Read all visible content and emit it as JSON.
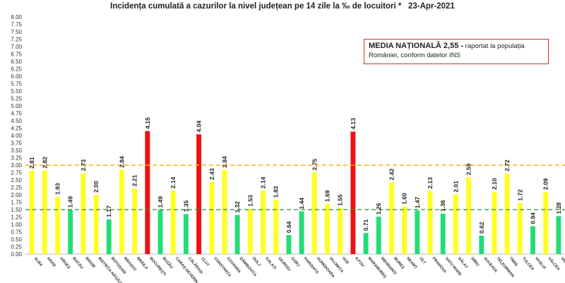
{
  "chart_data": {
    "type": "bar",
    "title": "Incidența cumulată a cazurilor la nivel județean pe 14 zile la ‰ de locuitori *   23-Apr-2021",
    "xlabel": "",
    "ylabel": "",
    "ylim": [
      0,
      8
    ],
    "ytick_step": 0.25,
    "grid": false,
    "categories": [
      "ALBA",
      "ARAD",
      "ARGEȘ",
      "BACĂU",
      "BIHOR",
      "BISTRIȚA-NĂSĂUD",
      "BOTOȘANI",
      "BRAȘOV",
      "BRĂILA",
      "BUCUREȘTI",
      "BUZĂU",
      "CARAȘ-SEVERIN",
      "CĂLĂRAȘI",
      "CLUJ",
      "CONSTANȚA",
      "COVASNA",
      "DÂMBOVIȚA",
      "DOLJ",
      "GALAȚI",
      "GIURGIU",
      "GORJ",
      "HARGHITA",
      "HUNEDOARA",
      "IALOMIȚA",
      "IAȘI",
      "ILFOV",
      "MARAMUREȘ",
      "MEHEDINȚI",
      "MUREȘ",
      "NEAMȚ",
      "OLT",
      "PRAHOVA",
      "SATU MARE",
      "SĂLAJ",
      "SIBIU",
      "SUCEAVA",
      "TELEORMAN",
      "TIMIȘ",
      "TULCEA",
      "VASLUI",
      "VÂLCEA",
      "VRANCEA"
    ],
    "values": [
      2.81,
      2.82,
      1.93,
      1.49,
      2.73,
      2.0,
      1.17,
      2.84,
      2.21,
      4.15,
      1.49,
      2.14,
      1.35,
      4.04,
      2.43,
      2.84,
      1.32,
      1.53,
      2.14,
      1.83,
      0.64,
      1.44,
      2.75,
      1.69,
      1.55,
      4.13,
      0.71,
      1.26,
      2.42,
      1.6,
      1.47,
      2.13,
      1.36,
      2.01,
      2.59,
      0.62,
      2.1,
      2.72,
      1.72,
      0.94,
      2.09,
      1.28
    ],
    "value_labels": [
      "2.81",
      "2.82",
      "1.93",
      "1.49",
      "2.73",
      "2.00",
      "1.17",
      "2.84",
      "2.21",
      "4.15",
      "1.49",
      "2.14",
      "1.35",
      "4.04",
      "2.43",
      "2.84",
      "1.32",
      "1.53",
      "2.14",
      "1.83",
      "0.64",
      "1.44",
      "2.75",
      "1.69",
      "1.55",
      "4.13",
      "0.71",
      "1.26",
      "2.42",
      "1.60",
      "1.47",
      "2.13",
      "1.36",
      "2.01",
      "2.59",
      "0.62",
      "2.10",
      "2.72",
      "1.72",
      "0.94",
      "2.09",
      "1.28"
    ],
    "thresholds": [
      {
        "value": 3.0,
        "color": "#f5b400"
      },
      {
        "value": 1.5,
        "color": "#2e8b3a"
      }
    ],
    "colors": {
      "green": "#22dd77",
      "yellow": "#ffff22",
      "red": "#ee1111"
    }
  },
  "info_box": {
    "bold_text": "MEDIA NAȚIONALĂ  2,55 -",
    "rest_text": " raportat la populația României, conform datelor INS"
  }
}
